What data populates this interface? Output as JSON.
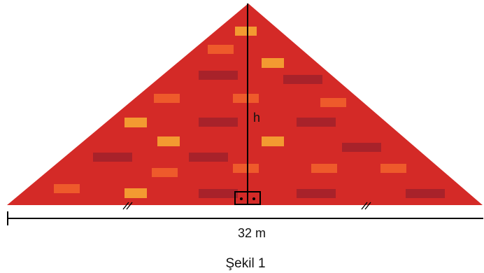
{
  "figure": {
    "height_label": "h",
    "base_label": "32 m",
    "caption": "Şekil 1"
  },
  "colors": {
    "triangle_fill": "#d42a27",
    "brick_dark": "#a8222a",
    "brick_orange": "#ee5a2b",
    "brick_light": "#f39a31",
    "line": "#000000"
  }
}
